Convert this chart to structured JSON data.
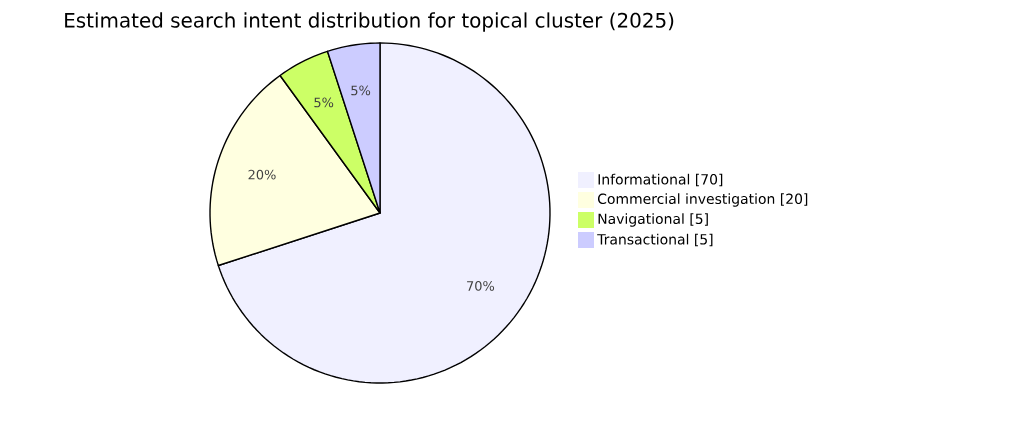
{
  "chart_data": {
    "type": "pie",
    "title": "Estimated search intent distribution for topical cluster (2025)",
    "categories": [
      "Informational [70]",
      "Commercial investigation [20]",
      "Navigational [5]",
      "Transactional [5]"
    ],
    "values": [
      70,
      20,
      5,
      5
    ],
    "value_labels": [
      "70%",
      "20%",
      "5%",
      "5%"
    ],
    "colors": [
      "#f0f0ff",
      "#ffffe0",
      "#ccff66",
      "#ccccff"
    ],
    "legend": "right"
  }
}
